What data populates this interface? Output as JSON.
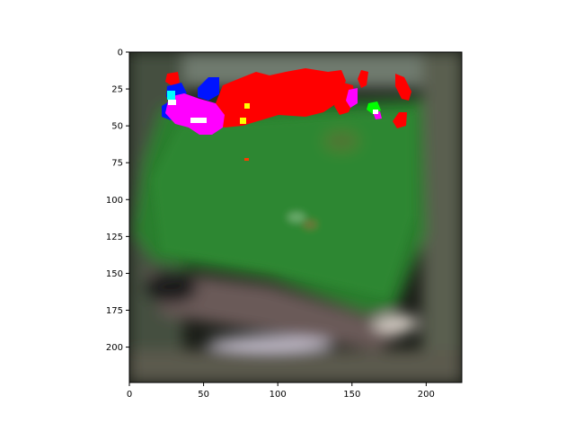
{
  "figure": {
    "type": "image",
    "image_extent": {
      "x": [
        0,
        224
      ],
      "y": [
        0,
        224
      ]
    },
    "x_ticks": [
      0,
      50,
      100,
      150,
      200
    ],
    "y_ticks": [
      0,
      25,
      50,
      75,
      100,
      125,
      150,
      175,
      200
    ],
    "x_tick_labels": [
      "0",
      "50",
      "100",
      "150",
      "200"
    ],
    "y_tick_labels": [
      "0",
      "25",
      "50",
      "75",
      "100",
      "125",
      "150",
      "175",
      "200"
    ]
  },
  "colors": {
    "field_green": "#2d7a2d",
    "dark_green": "#175a1c",
    "background_dark": "#141612",
    "segment_red": "#ff0000",
    "segment_magenta": "#ff00ff",
    "segment_blue": "#0014ff",
    "segment_cyan": "#00ffff",
    "segment_yellow": "#ffff00",
    "segment_green": "#00ff00",
    "segment_white": "#ffffff"
  }
}
